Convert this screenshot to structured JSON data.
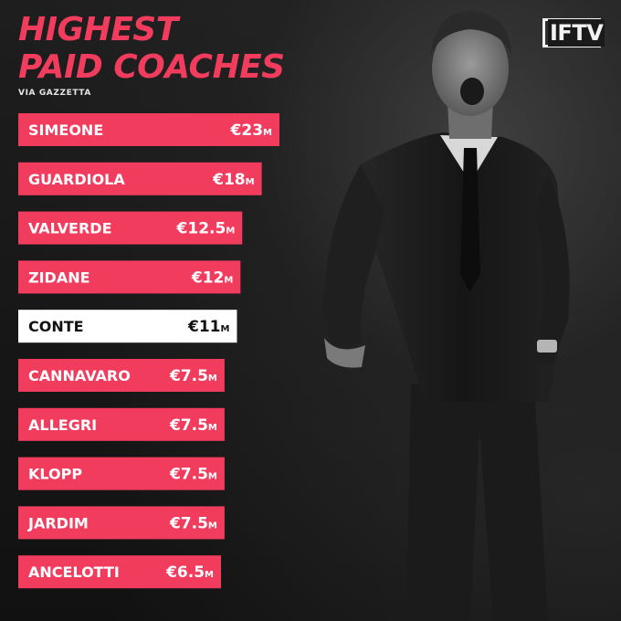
{
  "header": {
    "title_line1": "HIGHEST",
    "title_line2": "PAID COACHES",
    "source": "VIA GAZZETTA",
    "logo": "IFTV"
  },
  "colors": {
    "accent": "#f23c5e",
    "highlight_bar": "#ffffff",
    "background": "#141414"
  },
  "chart_data": {
    "type": "bar",
    "orientation": "horizontal",
    "title": "HIGHEST PAID COACHES",
    "unit_prefix": "€",
    "unit_suffix": "M",
    "categories": [
      "SIMEONE",
      "GUARDIOLA",
      "VALVERDE",
      "ZIDANE",
      "CONTE",
      "CANNAVARO",
      "ALLEGRI",
      "KLOPP",
      "JARDIM",
      "ANCELOTTI"
    ],
    "values": [
      23,
      18,
      12.5,
      12,
      11,
      7.5,
      7.5,
      7.5,
      7.5,
      6.5
    ],
    "value_labels": [
      "€23",
      "€18",
      "€12.5",
      "€12",
      "€11",
      "€7.5",
      "€7.5",
      "€7.5",
      "€7.5",
      "€6.5"
    ],
    "highlight": "CONTE",
    "grid": false,
    "legend": "none"
  }
}
